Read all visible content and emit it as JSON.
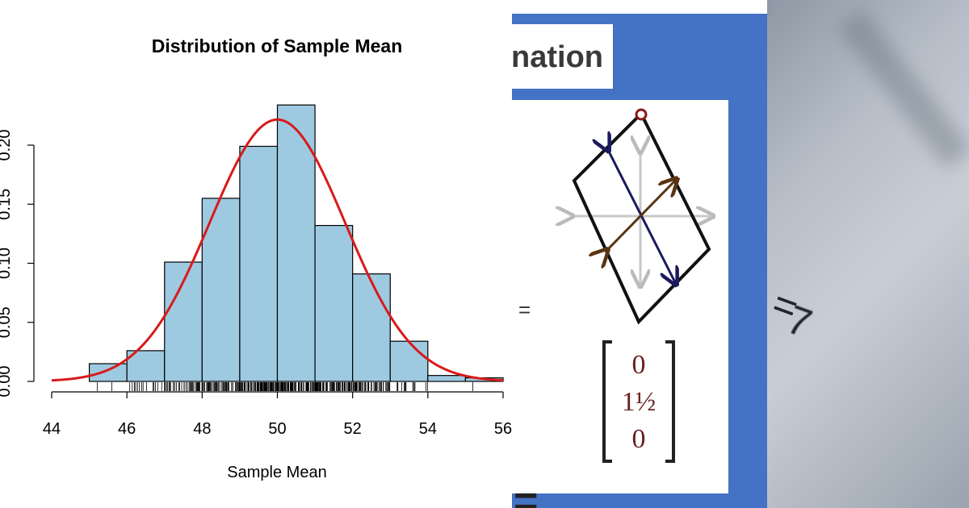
{
  "chart_data": {
    "type": "bar",
    "title": "Distribution of Sample Mean",
    "xlabel": "Sample Mean",
    "ylabel": "",
    "bin_edges": [
      44,
      45,
      46,
      47,
      48,
      49,
      50,
      51,
      52,
      53,
      54,
      55,
      56
    ],
    "values": [
      0.0,
      0.015,
      0.026,
      0.101,
      0.155,
      0.199,
      0.234,
      0.132,
      0.091,
      0.034,
      0.005,
      0.003
    ],
    "density_curve": {
      "name": "normal density",
      "mean": 50,
      "sd": 1.8,
      "color": "#d91a1a"
    },
    "xlim": [
      44,
      56
    ],
    "ylim": [
      0,
      0.2
    ],
    "xticks": [
      "44",
      "46",
      "48",
      "50",
      "52",
      "54",
      "56"
    ],
    "yticks": [
      "0.00",
      "0.05",
      "0.10",
      "0.15",
      "0.20"
    ],
    "bar_color": "#9ecae1",
    "grid": false,
    "rug": true
  },
  "slide": {
    "title_fragment": "nation",
    "equals": "=",
    "vector": [
      "0",
      "1½",
      "0"
    ]
  },
  "photo": {
    "mark_a": "=",
    "mark_b": "7"
  },
  "colors": {
    "slide_blue": "#4472c4",
    "ellipse_arrow": "#1a1a5e",
    "minor_arrow": "#5a3410",
    "vector_text": "#6b1f1f"
  }
}
